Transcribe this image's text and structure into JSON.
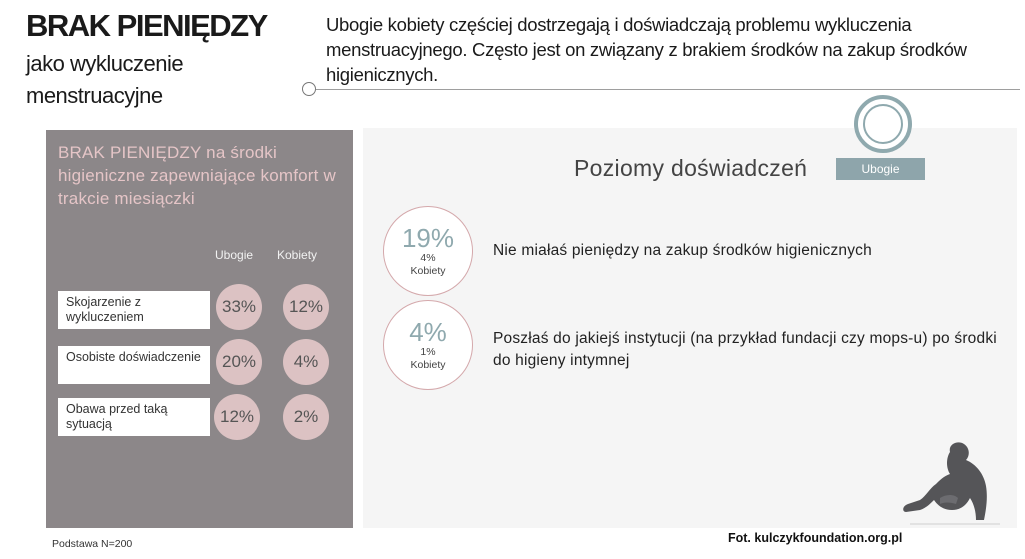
{
  "title": {
    "main": "BRAK PIENIĘDZY",
    "sub": "jako wykluczenie menstruacyjne"
  },
  "header": {
    "text": "Ubogie kobiety częściej dostrzegają i doświadczają problemu wykluczenia menstruacyjnego. Często jest on związany z brakiem środków na zakup środków higienicznych."
  },
  "left_panel": {
    "heading": "BRAK PIENIĘDZY na środki higieniczne zapewniające komfort w trakcie miesiączki",
    "columns": [
      "Ubogie",
      "Kobiety"
    ],
    "rows": [
      {
        "label": "Skojarzenie z wykluczeniem",
        "ubogie": "33%",
        "kobiety": "12%"
      },
      {
        "label": "Osobiste doświadczenie",
        "ubogie": "20%",
        "kobiety": "4%"
      },
      {
        "label": "Obawa przed taką sytuacją",
        "ubogie": "12%",
        "kobiety": "2%"
      }
    ],
    "colors": {
      "background": "#8c8789",
      "circle": "#dcc2c3",
      "heading": "#e5c5c7"
    }
  },
  "right_panel": {
    "title": "Poziomy doświadczeń",
    "badge": "Ubogie",
    "items": [
      {
        "value": "19%",
        "sub_value": "4%",
        "sub_label": "Kobiety",
        "text": "Nie miałaś pieniędzy na zakup środków higienicznych"
      },
      {
        "value": "4%",
        "sub_value": "1%",
        "sub_label": "Kobiety",
        "text": "Poszłaś do jakiejś instytucji (na przykład fundacji czy mops-u) po środki do higieny intymnej"
      }
    ],
    "colors": {
      "accent": "#8fa9ae",
      "circle_border": "#d4a8ab"
    }
  },
  "footer": {
    "base_note": "Podstawa N=200",
    "credit": "Fot. kulczykfoundation.org.pl"
  },
  "icons": [
    "ring-decoration-icon",
    "header-dot-icon",
    "sitting-woman-silhouette-icon"
  ]
}
